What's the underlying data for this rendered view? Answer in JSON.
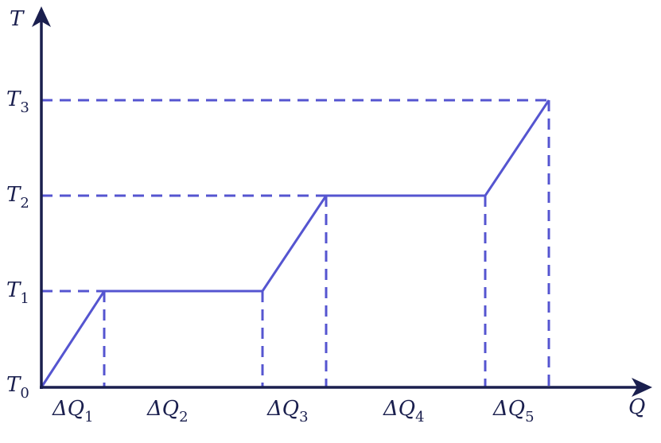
{
  "axes": {
    "y_label": "T",
    "x_label": "Q"
  },
  "temperature_labels": [
    {
      "main": "T",
      "sub": "0"
    },
    {
      "main": "T",
      "sub": "1"
    },
    {
      "main": "T",
      "sub": "2"
    },
    {
      "main": "T",
      "sub": "3"
    }
  ],
  "heat_labels": [
    {
      "main": "ΔQ",
      "sub": "1"
    },
    {
      "main": "ΔQ",
      "sub": "2"
    },
    {
      "main": "ΔQ",
      "sub": "3"
    },
    {
      "main": "ΔQ",
      "sub": "4"
    },
    {
      "main": "ΔQ",
      "sub": "5"
    }
  ]
}
